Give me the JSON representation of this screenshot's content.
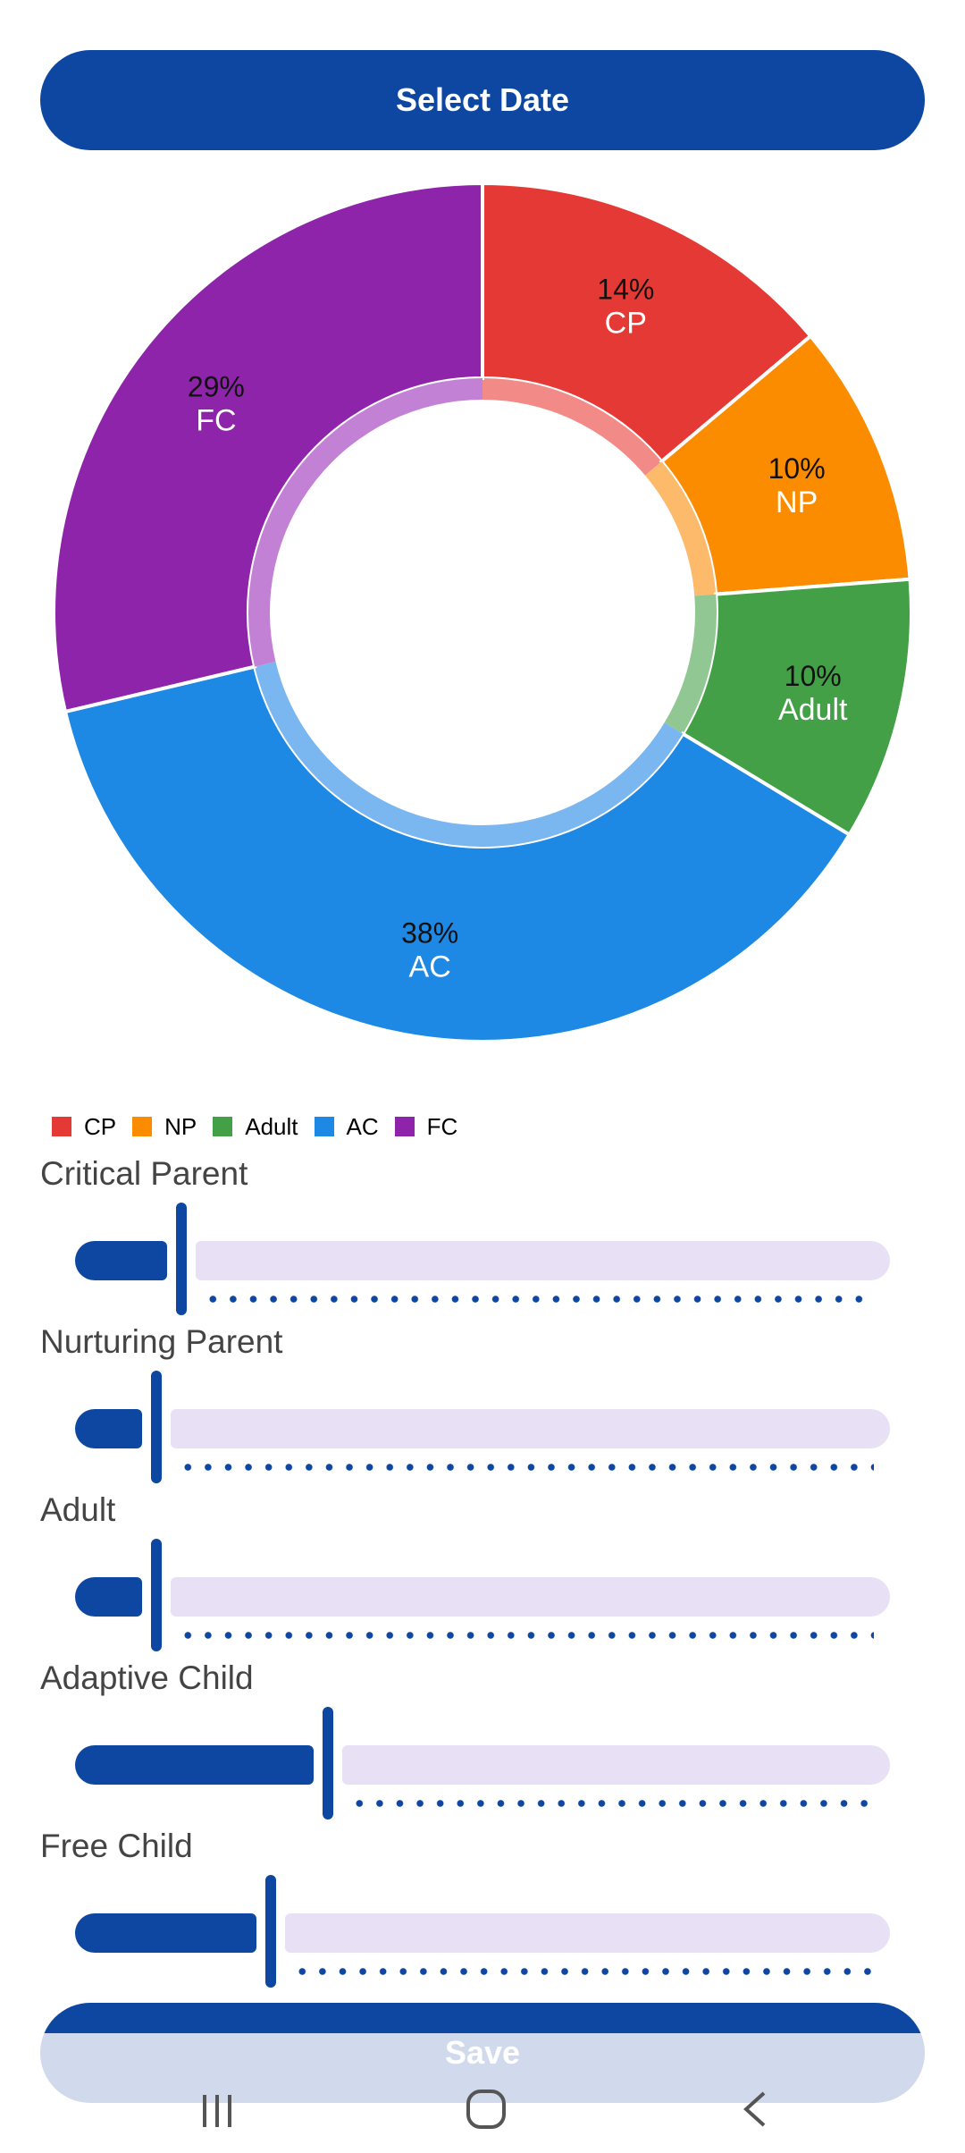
{
  "header": {
    "select_date_label": "Select Date"
  },
  "chart_data": {
    "type": "pie",
    "subtype": "donut",
    "slices": [
      {
        "label": "CP",
        "value": 14,
        "color": "#e53935",
        "inner_color": "#f28b88"
      },
      {
        "label": "NP",
        "value": 10,
        "color": "#fb8c00",
        "inner_color": "#fdba6b"
      },
      {
        "label": "Adult",
        "value": 10,
        "color": "#43a047",
        "inner_color": "#91c792"
      },
      {
        "label": "AC",
        "value": 38,
        "color": "#1e88e5",
        "inner_color": "#7ab6ef"
      },
      {
        "label": "FC",
        "value": 29,
        "color": "#8e24aa",
        "inner_color": "#c281d4"
      }
    ],
    "percent_labels": [
      "14%",
      "10%",
      "10%",
      "38%",
      "29%"
    ],
    "legend": [
      "CP",
      "NP",
      "Adult",
      "AC",
      "FC"
    ],
    "legend_placement": "bottom-left"
  },
  "sliders": [
    {
      "label": "Critical Parent",
      "value_fraction": 0.13
    },
    {
      "label": "Nurturing Parent",
      "value_fraction": 0.1
    },
    {
      "label": "Adult",
      "value_fraction": 0.1
    },
    {
      "label": "Adaptive Child",
      "value_fraction": 0.31
    },
    {
      "label": "Free Child",
      "value_fraction": 0.24
    }
  ],
  "save_label": "Save",
  "colors": {
    "accent": "#0d47a1",
    "inactive_track": "#e8e0f5"
  }
}
